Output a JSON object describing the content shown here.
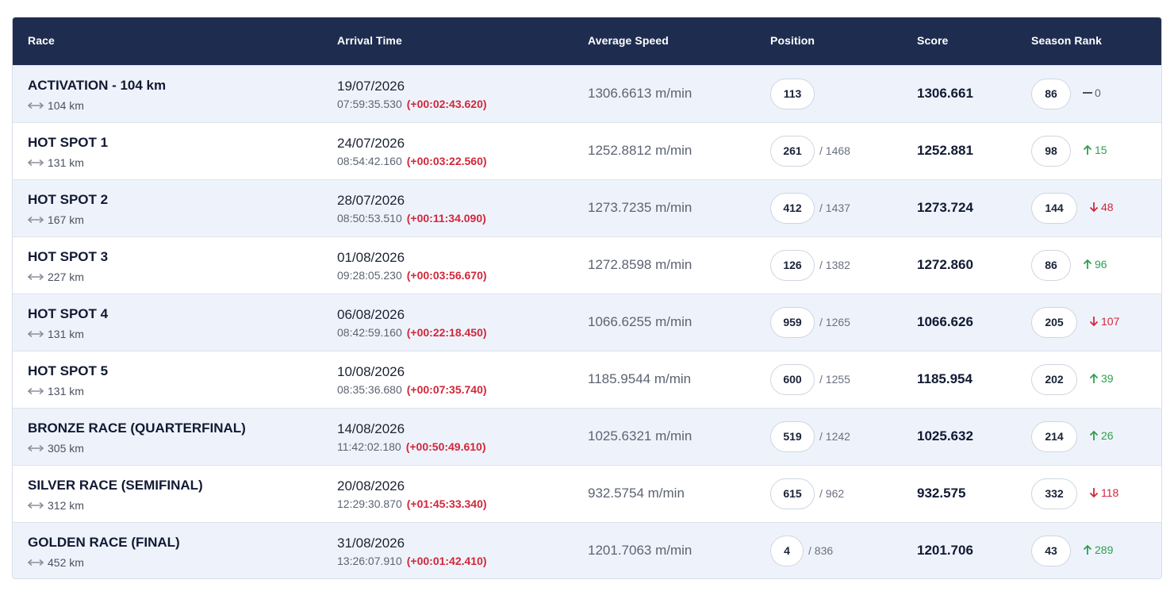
{
  "table": {
    "headers": {
      "race": "Race",
      "arrival": "Arrival Time",
      "speed": "Average Speed",
      "position": "Position",
      "score": "Score",
      "season_rank": "Season Rank"
    },
    "header_bg": "#1e2d4f",
    "up_color": "#2e9e4f",
    "down_color": "#d2263a",
    "rows": [
      {
        "name": "ACTIVATION - 104 km",
        "distance": "104 km",
        "date": "19/07/2026",
        "time": "07:59:35.530",
        "delta": "(+00:02:43.620)",
        "speed": "1306.6613 m/min",
        "position": "113",
        "position_total": "",
        "score": "1306.661",
        "rank": "86",
        "rank_change": "0",
        "trend": "same"
      },
      {
        "name": "HOT SPOT 1",
        "distance": "131 km",
        "date": "24/07/2026",
        "time": "08:54:42.160",
        "delta": "(+00:03:22.560)",
        "speed": "1252.8812 m/min",
        "position": "261",
        "position_total": "/ 1468",
        "score": "1252.881",
        "rank": "98",
        "rank_change": "15",
        "trend": "up"
      },
      {
        "name": "HOT SPOT 2",
        "distance": "167 km",
        "date": "28/07/2026",
        "time": "08:50:53.510",
        "delta": "(+00:11:34.090)",
        "speed": "1273.7235 m/min",
        "position": "412",
        "position_total": "/ 1437",
        "score": "1273.724",
        "rank": "144",
        "rank_change": "48",
        "trend": "down"
      },
      {
        "name": "HOT SPOT 3",
        "distance": "227 km",
        "date": "01/08/2026",
        "time": "09:28:05.230",
        "delta": "(+00:03:56.670)",
        "speed": "1272.8598 m/min",
        "position": "126",
        "position_total": "/ 1382",
        "score": "1272.860",
        "rank": "86",
        "rank_change": "96",
        "trend": "up"
      },
      {
        "name": "HOT SPOT 4",
        "distance": "131 km",
        "date": "06/08/2026",
        "time": "08:42:59.160",
        "delta": "(+00:22:18.450)",
        "speed": "1066.6255 m/min",
        "position": "959",
        "position_total": "/ 1265",
        "score": "1066.626",
        "rank": "205",
        "rank_change": "107",
        "trend": "down"
      },
      {
        "name": "HOT SPOT 5",
        "distance": "131 km",
        "date": "10/08/2026",
        "time": "08:35:36.680",
        "delta": "(+00:07:35.740)",
        "speed": "1185.9544 m/min",
        "position": "600",
        "position_total": "/ 1255",
        "score": "1185.954",
        "rank": "202",
        "rank_change": "39",
        "trend": "up"
      },
      {
        "name": "BRONZE RACE (QUARTERFINAL)",
        "distance": "305 km",
        "date": "14/08/2026",
        "time": "11:42:02.180",
        "delta": "(+00:50:49.610)",
        "speed": "1025.6321 m/min",
        "position": "519",
        "position_total": "/ 1242",
        "score": "1025.632",
        "rank": "214",
        "rank_change": "26",
        "trend": "up"
      },
      {
        "name": "SILVER RACE (SEMIFINAL)",
        "distance": "312 km",
        "date": "20/08/2026",
        "time": "12:29:30.870",
        "delta": "(+01:45:33.340)",
        "speed": "932.5754 m/min",
        "position": "615",
        "position_total": "/ 962",
        "score": "932.575",
        "rank": "332",
        "rank_change": "118",
        "trend": "down"
      },
      {
        "name": "GOLDEN RACE (FINAL)",
        "distance": "452 km",
        "date": "31/08/2026",
        "time": "13:26:07.910",
        "delta": "(+00:01:42.410)",
        "speed": "1201.7063 m/min",
        "position": "4",
        "position_total": "/ 836",
        "score": "1201.706",
        "rank": "43",
        "rank_change": "289",
        "trend": "up"
      }
    ]
  }
}
